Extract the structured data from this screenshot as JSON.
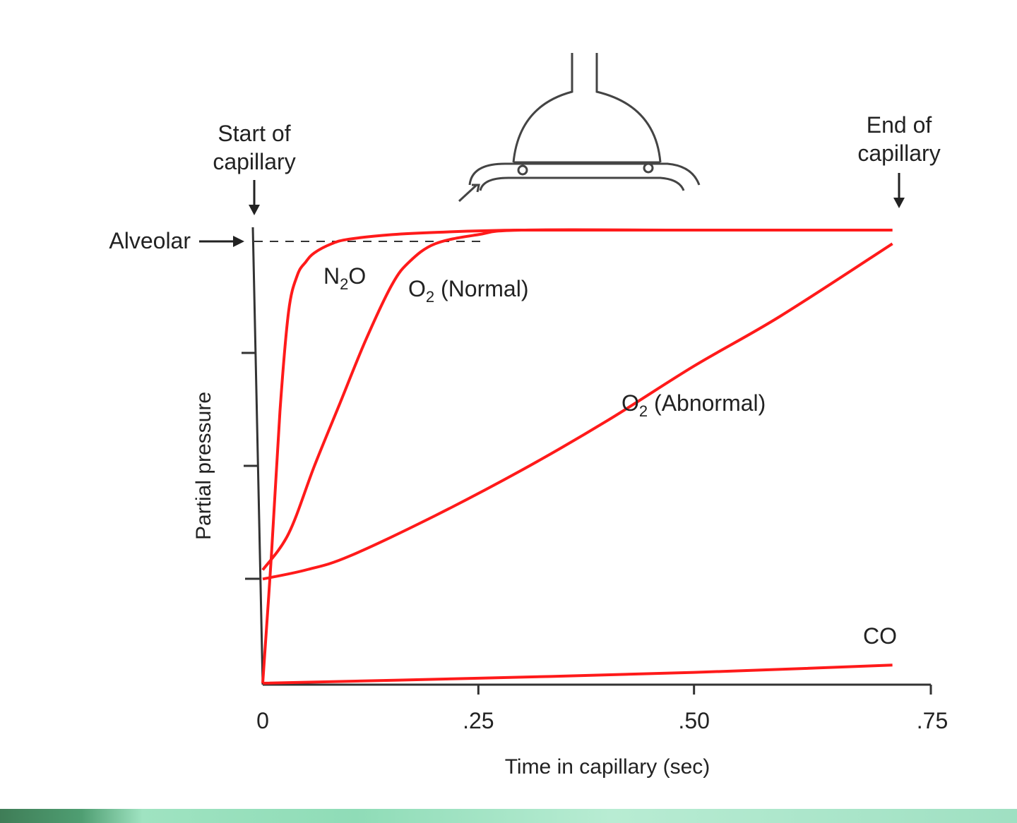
{
  "chart_data": {
    "type": "line",
    "title": "",
    "xlabel": "Time in capillary (sec)",
    "ylabel": "Partial pressure",
    "x_ticks": [
      {
        "value": 0,
        "label": "0"
      },
      {
        "value": 0.25,
        "label": ".25"
      },
      {
        "value": 0.5,
        "label": ".50"
      },
      {
        "value": 0.75,
        "label": ".75"
      }
    ],
    "xlim": [
      0,
      0.75
    ],
    "ylim": [
      0,
      1
    ],
    "y_reference": {
      "label": "Alveolar",
      "value": 1.0
    },
    "annotations": {
      "start": "Start of capillary",
      "end": "End of capillary"
    },
    "series": [
      {
        "name": "N2O",
        "label_main": "N",
        "label_sub": "2",
        "label_tail": "O",
        "x": [
          0,
          0.01,
          0.02,
          0.03,
          0.04,
          0.05,
          0.06,
          0.08,
          0.1,
          0.15,
          0.2,
          0.3,
          0.5,
          0.73
        ],
        "y": [
          0.0,
          0.28,
          0.6,
          0.82,
          0.9,
          0.93,
          0.95,
          0.97,
          0.98,
          0.99,
          0.995,
          1.0,
          1.0,
          1.0
        ]
      },
      {
        "name": "O2 (Normal)",
        "label_main": "O",
        "label_sub": "2",
        "label_tail": " (Normal)",
        "x": [
          0,
          0.03,
          0.06,
          0.09,
          0.12,
          0.15,
          0.17,
          0.2,
          0.25,
          0.3,
          0.5,
          0.73
        ],
        "y": [
          0.25,
          0.33,
          0.48,
          0.62,
          0.76,
          0.88,
          0.93,
          0.97,
          0.99,
          1.0,
          1.0,
          1.0
        ]
      },
      {
        "name": "O2 (Abnormal)",
        "label_main": "O",
        "label_sub": "2",
        "label_tail": " (Abnormal)",
        "x": [
          0,
          0.05,
          0.1,
          0.2,
          0.3,
          0.4,
          0.5,
          0.6,
          0.73
        ],
        "y": [
          0.23,
          0.25,
          0.28,
          0.37,
          0.47,
          0.58,
          0.7,
          0.81,
          0.97
        ]
      },
      {
        "name": "CO",
        "label_main": "CO",
        "label_sub": "",
        "label_tail": "",
        "x": [
          0,
          0.25,
          0.5,
          0.73
        ],
        "y": [
          0.0,
          0.011,
          0.024,
          0.04
        ]
      }
    ],
    "colors": {
      "curves": "#ff1a1a",
      "axes": "#333333",
      "text": "#222222"
    },
    "grid": false,
    "legend": "none"
  }
}
